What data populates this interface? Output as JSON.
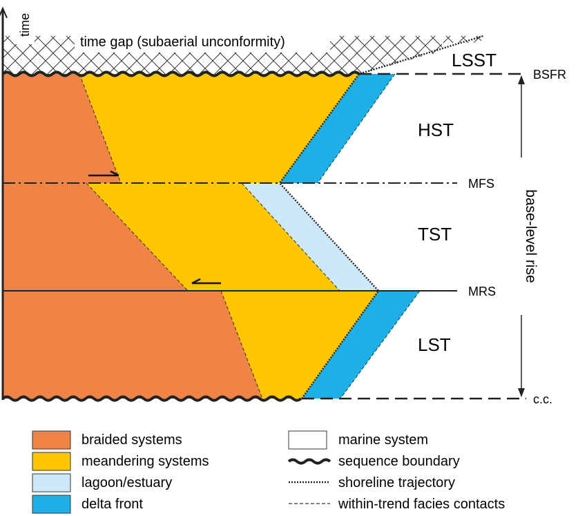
{
  "axis": {
    "time_label": "time"
  },
  "annotations": {
    "time_gap": "time gap (subaerial unconformity)",
    "base_level_rise": "base-level rise"
  },
  "tracts": {
    "lsst": "LSST",
    "hst": "HST",
    "tst": "TST",
    "lst": "LST"
  },
  "surfaces": {
    "bsfr": "BSFR",
    "mfs": "MFS",
    "mrs": "MRS",
    "cc": "c.c."
  },
  "legend": {
    "left": [
      {
        "label": "braided systems",
        "color": "#ef8446",
        "kind": "fill"
      },
      {
        "label": "meandering systems",
        "color": "#fdc600",
        "kind": "fill"
      },
      {
        "label": "lagoon/estuary",
        "color": "#cde8f8",
        "kind": "fill"
      },
      {
        "label": "delta front",
        "color": "#1cb0e6",
        "kind": "fill"
      }
    ],
    "right": [
      {
        "label": "marine system",
        "kind": "box"
      },
      {
        "label": "sequence boundary",
        "kind": "wavy"
      },
      {
        "label": "shoreline trajectory",
        "kind": "dotted"
      },
      {
        "label": "within-trend facies contacts",
        "kind": "dashed"
      }
    ]
  },
  "colors": {
    "braided": "#ef8446",
    "meandering": "#fdc600",
    "lagoon": "#cde8f8",
    "delta_front": "#1cb0e6",
    "marine": "#ffffff",
    "line": "#222222"
  }
}
